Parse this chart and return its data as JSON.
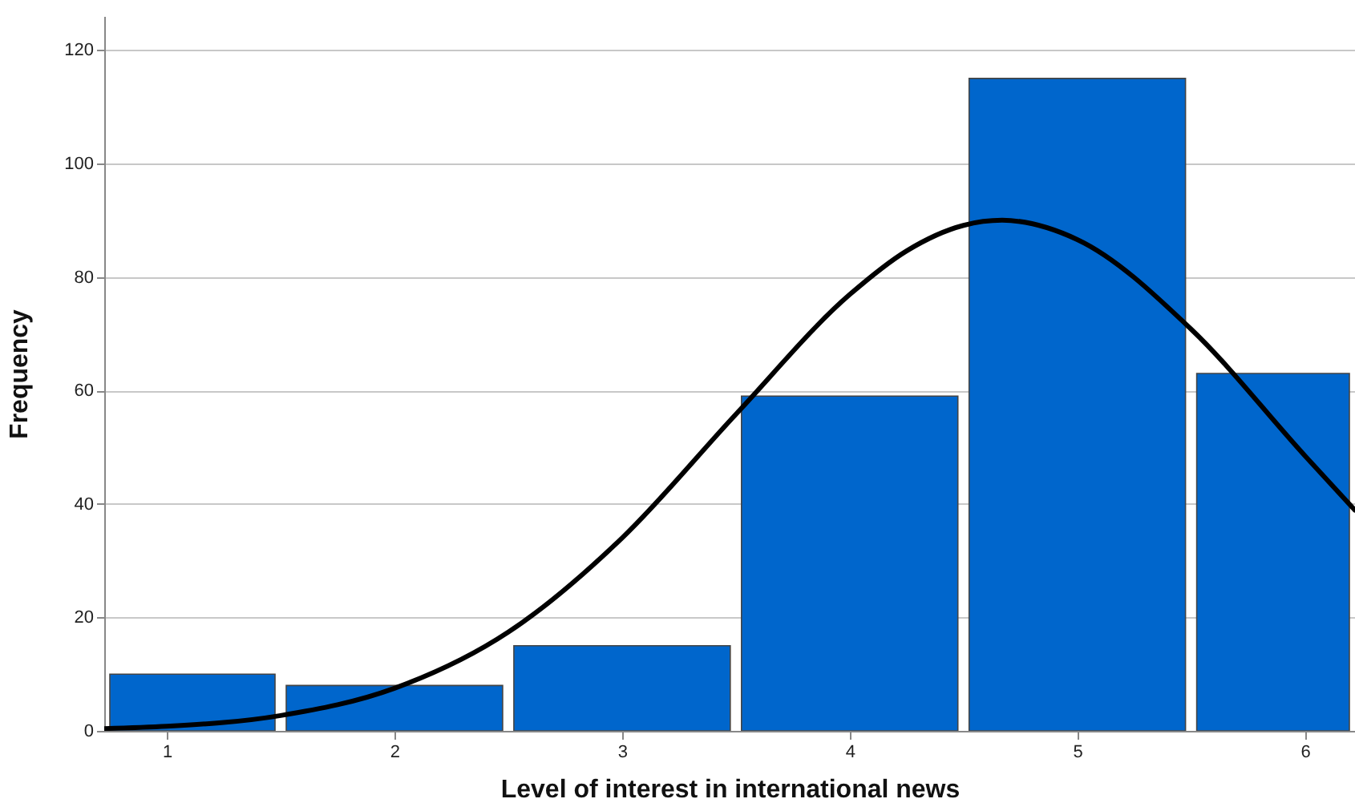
{
  "chart_data": {
    "type": "histogram",
    "xlabel": "Level of interest in international news",
    "ylabel": "Frequency",
    "bins": [
      0.725,
      1.5,
      2.5,
      3.5,
      4.5,
      5.5,
      6.22
    ],
    "values": [
      10,
      8,
      15,
      59,
      115,
      63
    ],
    "color": "#0066cc",
    "series": [
      {
        "type": "line",
        "color": "#000000",
        "x": [
          0.725,
          1,
          1.5,
          2,
          2.5,
          3,
          3.5,
          4,
          4.25,
          4.5,
          4.67,
          5,
          5.5,
          6,
          6.22
        ],
        "values": [
          0.4,
          0.8,
          2.7,
          7.5,
          17.4,
          34,
          55.8,
          76.9,
          84.6,
          89.1,
          90,
          86.6,
          70.8,
          48.5,
          38.9
        ]
      }
    ],
    "xlim": [
      0.725,
      6.22
    ],
    "xticks": [
      1,
      2,
      3,
      4,
      5,
      6
    ],
    "ylim": [
      0,
      126
    ],
    "yticks": [
      0,
      20,
      40,
      60,
      80,
      100,
      120
    ],
    "grid": "y",
    "marker": "none",
    "line_style": "solid"
  }
}
